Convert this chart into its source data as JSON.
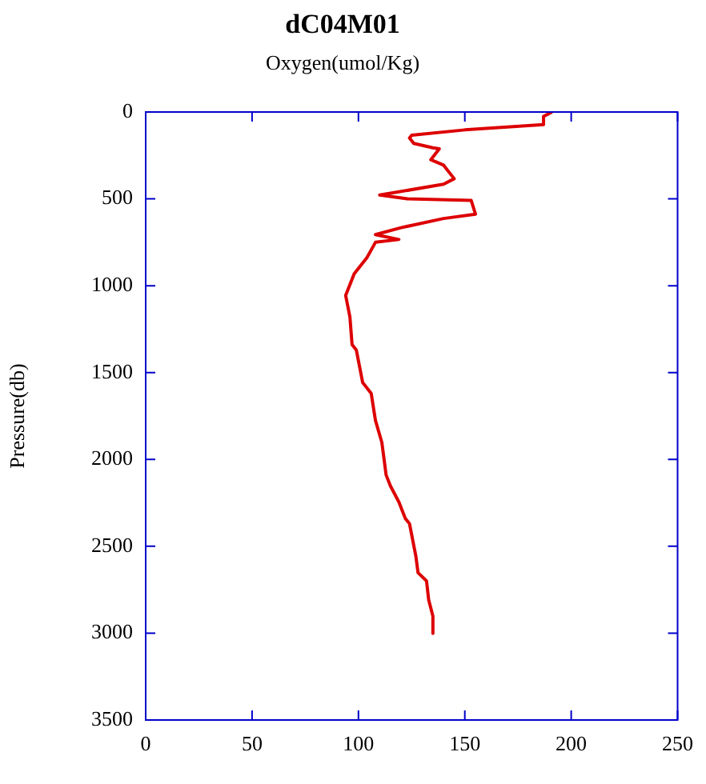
{
  "chart_data": {
    "type": "line",
    "title": "dC04M01",
    "subtitle": "Oxygen(umol/Kg)",
    "ylabel": "Pressure(db)",
    "xlim": [
      0,
      250
    ],
    "xticks": [
      0,
      50,
      100,
      150,
      200,
      250
    ],
    "ylim": [
      3500,
      0
    ],
    "yticks": [
      0,
      500,
      1000,
      1500,
      2000,
      2500,
      3000,
      3500
    ],
    "grid": false,
    "legend": false,
    "marker": "none",
    "line_style": "solid",
    "series": [
      {
        "color": "#dd0000",
        "x": [
          191,
          187,
          187,
          150,
          125,
          124,
          126,
          135,
          138,
          134,
          140,
          145,
          140,
          110,
          123,
          153,
          155,
          140,
          120,
          108,
          119,
          108,
          104,
          98,
          94,
          96,
          97,
          99,
          102,
          106,
          108,
          111,
          113,
          115,
          119,
          122,
          124,
          127,
          128,
          132,
          133,
          135,
          135
        ],
        "values": [
          0,
          25,
          72,
          103,
          134,
          150,
          181,
          206,
          212,
          275,
          306,
          384,
          416,
          478,
          500,
          509,
          588,
          613,
          666,
          706,
          734,
          750,
          838,
          931,
          1056,
          1181,
          1339,
          1370,
          1558,
          1620,
          1776,
          1902,
          2089,
          2152,
          2245,
          2339,
          2370,
          2558,
          2652,
          2699,
          2808,
          2902,
          3002
        ]
      }
    ]
  }
}
